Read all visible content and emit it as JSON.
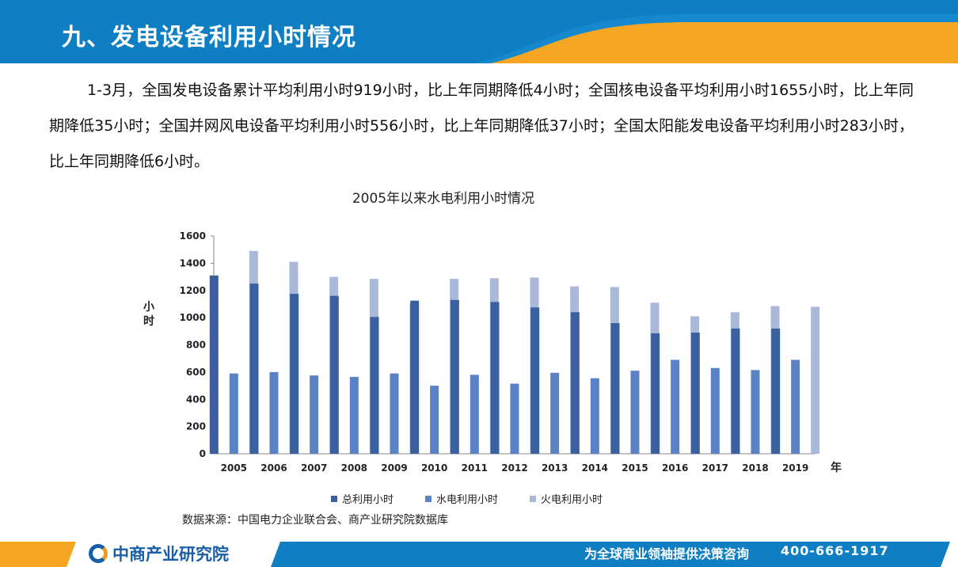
{
  "header": {
    "title": "九、发电设备利用小时情况"
  },
  "body": {
    "paragraph": "1-3月，全国发电设备累计平均利用小时919小时，比上年同期降低4小时；全国核电设备平均利用小时1655小时，比上年同期降低35小时；全国并网风电设备平均利用小时556小时，比上年同期降低37小时；全国太阳能发电设备平均利用小时283小时，比上年同期降低6小时。"
  },
  "chart_data": {
    "type": "bar",
    "title": "2005年以来水电利用小时情况",
    "xlabel": "年",
    "ylabel": "小时",
    "ylim": [
      0,
      1600
    ],
    "yticks": [
      0,
      200,
      400,
      600,
      800,
      1000,
      1200,
      1400,
      1600
    ],
    "categories": [
      "2005",
      "2006",
      "2007",
      "2008",
      "2009",
      "2010",
      "2011",
      "2012",
      "2013",
      "2014",
      "2015",
      "2016",
      "2017",
      "2018",
      "2019"
    ],
    "series": [
      {
        "name": "总利用小时",
        "color": "#3a60a0",
        "values": [
          1310,
          1250,
          1175,
          1160,
          1005,
          1125,
          1130,
          1115,
          1075,
          1040,
          960,
          885,
          890,
          920,
          920
        ]
      },
      {
        "name": "水电利用小时",
        "color": "#5b82c4",
        "values": [
          590,
          600,
          575,
          565,
          590,
          500,
          580,
          515,
          595,
          555,
          610,
          690,
          630,
          615,
          690
        ]
      },
      {
        "name": "火电利用小时",
        "color": "#aab9d9",
        "values": [
          1490,
          1410,
          1300,
          1285,
          1100,
          1285,
          1290,
          1295,
          1230,
          1225,
          1110,
          1010,
          1040,
          1085,
          1080
        ]
      }
    ]
  },
  "source": {
    "text": "数据来源：中国电力企业联合会、商产业研究院数据库"
  },
  "footer": {
    "brand": "中商产业研究院",
    "slogan": "为全球商业领袖提供决策咨询",
    "phone": "400-666-1917"
  },
  "colors": {
    "blue": "#0f7ec3",
    "orange": "#f5a623",
    "brand": "#1a5ea8"
  }
}
